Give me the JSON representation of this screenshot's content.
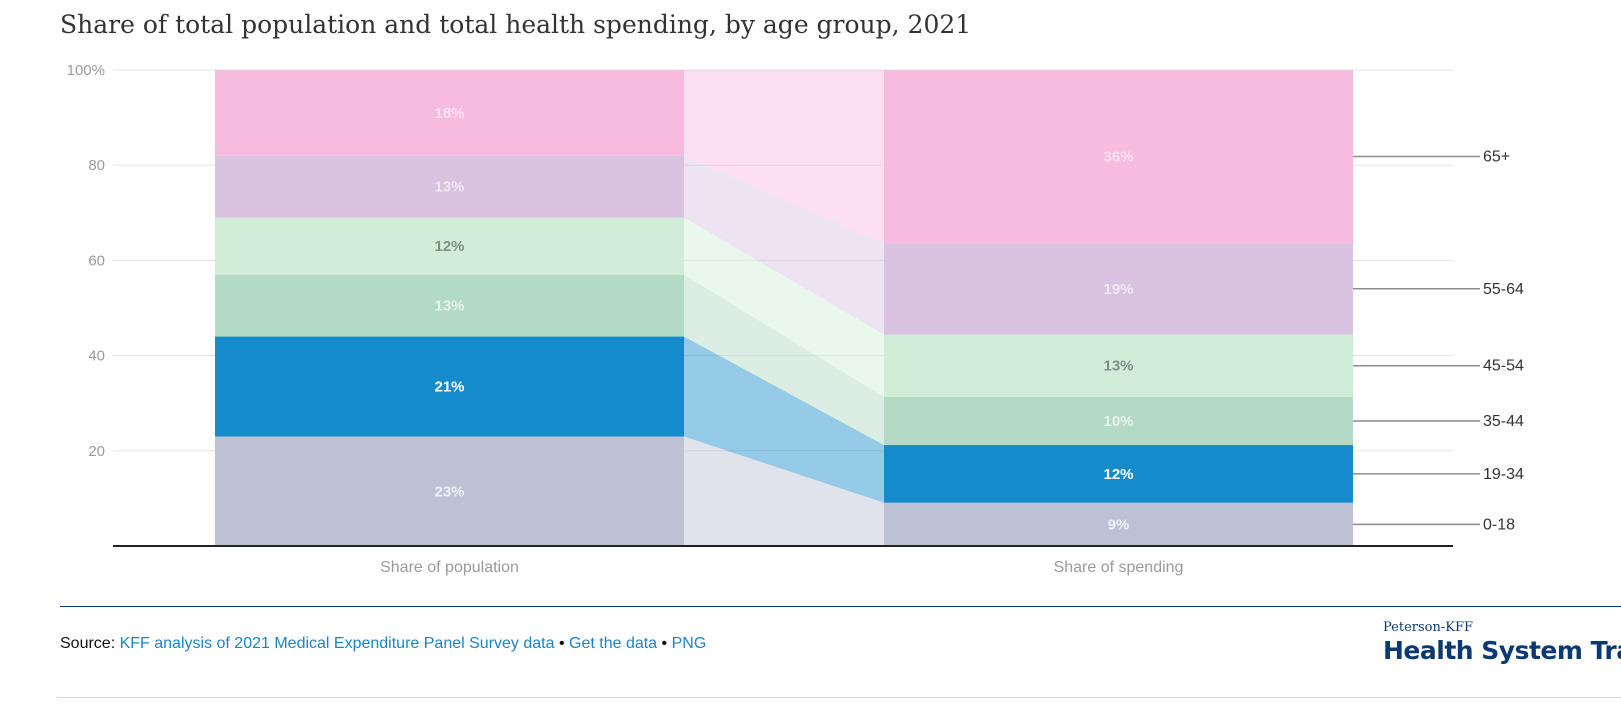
{
  "title": "Share of total population and total health spending, by age group, 2021",
  "chart_data": {
    "type": "bar",
    "stacked": true,
    "orientation": "vertical",
    "categories": [
      "Share of population",
      "Share of spending"
    ],
    "series": [
      {
        "name": "0-18",
        "values": [
          23,
          9
        ],
        "color": "#bcc2d3",
        "label_color": "#eef0f5"
      },
      {
        "name": "19-34",
        "values": [
          21,
          12
        ],
        "color": "#168bcb",
        "label_color": "#ffffff"
      },
      {
        "name": "35-44",
        "values": [
          13,
          10
        ],
        "color": "#b2dac4",
        "label_color": "#e7f3ec"
      },
      {
        "name": "45-54",
        "values": [
          12,
          13
        ],
        "color": "#d1edd8",
        "label_color": "#7e8f84"
      },
      {
        "name": "55-64",
        "values": [
          13,
          19
        ],
        "color": "#d9c3e0",
        "label_color": "#f1e8f4"
      },
      {
        "name": "65+",
        "values": [
          18,
          36
        ],
        "color": "#f8bbe0",
        "label_color": "#fbe3f1"
      }
    ],
    "data_labels": [
      [
        "23%",
        "9%"
      ],
      [
        "21%",
        "12%"
      ],
      [
        "13%",
        "10%"
      ],
      [
        "12%",
        "13%"
      ],
      [
        "13%",
        "19%"
      ],
      [
        "18%",
        "36%"
      ]
    ],
    "ylim": [
      0,
      100
    ],
    "yticks": [
      20,
      40,
      60,
      80,
      100
    ],
    "ytick_labels": [
      "20",
      "40",
      "60",
      "80",
      "100%"
    ],
    "grid": true,
    "legend": "direct labels on right",
    "connectors": true
  },
  "footer": {
    "source_prefix": "Source:",
    "source_link": "KFF analysis of 2021 Medical Expenditure Panel Survey data",
    "separator": "•",
    "get_data_link": "Get the data",
    "png_link": "PNG",
    "brand_small": "Peterson-KFF",
    "brand_big": "Health System Tracker"
  }
}
